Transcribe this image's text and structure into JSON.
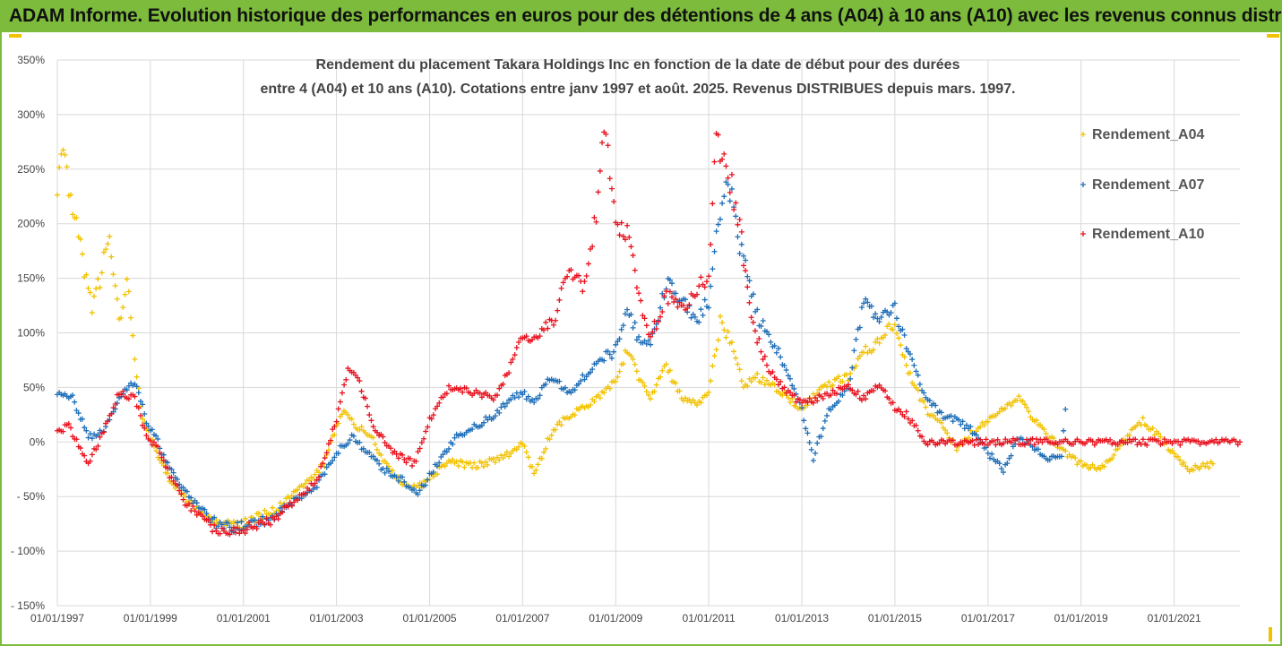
{
  "header": {
    "title": "ADAM Informe. Evolution historique des performances en euros pour des détentions de 4 ans (A04) à 10 ans (A10) avec les revenus connus distribués"
  },
  "colors": {
    "frame": "#7dbb3c",
    "accent": "#f2c200",
    "a04": "#f2c200",
    "a07": "#1f6fb8",
    "a10": "#e8131f",
    "grid": "#d9d9d9",
    "text": "#444444"
  },
  "chart_data": {
    "type": "scatter",
    "title_line1": "Rendement du placement Takara Holdings Inc en fonction de la date de début pour des durées",
    "title_line2": "entre 4 (A04) et 10 ans (A10). Cotations entre janv 1997 et août. 2025. Revenus DISTRIBUES depuis mars. 1997.",
    "xlabel": "",
    "ylabel": "",
    "ylim": [
      -150,
      350
    ],
    "xlim": [
      "1997-01-01",
      "2022-06-01"
    ],
    "y_ticks": [
      350,
      300,
      250,
      200,
      150,
      100,
      50,
      0,
      -50,
      -100,
      -150
    ],
    "y_tick_labels": [
      "350%",
      "300%",
      "250%",
      "200%",
      "150%",
      "100%",
      "50%",
      "0%",
      "- 50%",
      "- 100%",
      "- 150%"
    ],
    "x_ticks": [
      "1997-01-01",
      "1999-01-01",
      "2001-01-01",
      "2003-01-01",
      "2005-01-01",
      "2007-01-01",
      "2009-01-01",
      "2011-01-01",
      "2013-01-01",
      "2015-01-01",
      "2017-01-01",
      "2019-01-01",
      "2021-01-01"
    ],
    "x_tick_labels": [
      "01/01/1997",
      "01/01/1999",
      "01/01/2001",
      "01/01/2003",
      "01/01/2005",
      "01/01/2007",
      "01/01/2009",
      "01/01/2011",
      "01/01/2013",
      "01/01/2015",
      "01/01/2017",
      "01/01/2019",
      "01/01/2021"
    ],
    "grid": true,
    "marker": "+",
    "legend_position": "top-right",
    "series": [
      {
        "name": "Rendement_A04",
        "color": "#f2c200",
        "points": [
          [
            "1997-01-01",
            230
          ],
          [
            "1997-02-01",
            260
          ],
          [
            "1997-04-01",
            240
          ],
          [
            "1997-06-01",
            195
          ],
          [
            "1997-08-01",
            160
          ],
          [
            "1997-10-01",
            120
          ],
          [
            "1997-12-01",
            150
          ],
          [
            "1998-02-01",
            190
          ],
          [
            "1998-03-01",
            175
          ],
          [
            "1998-05-01",
            110
          ],
          [
            "1998-07-01",
            150
          ],
          [
            "1998-09-01",
            75
          ],
          [
            "1998-11-01",
            20
          ],
          [
            "1999-01-01",
            5
          ],
          [
            "1999-04-01",
            -20
          ],
          [
            "1999-07-01",
            -40
          ],
          [
            "1999-10-01",
            -50
          ],
          [
            "2000-01-01",
            -62
          ],
          [
            "2000-04-01",
            -72
          ],
          [
            "2000-08-01",
            -76
          ],
          [
            "2001-01-01",
            -74
          ],
          [
            "2001-06-01",
            -67
          ],
          [
            "2001-10-01",
            -60
          ],
          [
            "2002-04-01",
            -42
          ],
          [
            "2002-10-01",
            -20
          ],
          [
            "2003-01-01",
            15
          ],
          [
            "2003-03-01",
            30
          ],
          [
            "2003-06-01",
            15
          ],
          [
            "2003-10-01",
            5
          ],
          [
            "2004-01-01",
            -15
          ],
          [
            "2004-05-01",
            -35
          ],
          [
            "2004-10-01",
            -42
          ],
          [
            "2005-02-01",
            -30
          ],
          [
            "2005-06-01",
            -18
          ],
          [
            "2005-12-01",
            -22
          ],
          [
            "2006-05-01",
            -18
          ],
          [
            "2006-10-01",
            -10
          ],
          [
            "2007-01-01",
            -2
          ],
          [
            "2007-04-01",
            -30
          ],
          [
            "2007-08-01",
            5
          ],
          [
            "2007-12-01",
            22
          ],
          [
            "2008-04-01",
            30
          ],
          [
            "2008-08-01",
            40
          ],
          [
            "2009-01-01",
            55
          ],
          [
            "2009-04-01",
            85
          ],
          [
            "2009-07-01",
            60
          ],
          [
            "2009-10-01",
            40
          ],
          [
            "2010-02-01",
            70
          ],
          [
            "2010-06-01",
            40
          ],
          [
            "2010-10-01",
            35
          ],
          [
            "2011-01-01",
            45
          ],
          [
            "2011-04-01",
            110
          ],
          [
            "2011-07-01",
            90
          ],
          [
            "2011-10-01",
            50
          ],
          [
            "2012-01-01",
            60
          ],
          [
            "2012-04-01",
            55
          ],
          [
            "2012-08-01",
            45
          ],
          [
            "2013-01-01",
            30
          ],
          [
            "2013-05-01",
            45
          ],
          [
            "2013-09-01",
            55
          ],
          [
            "2014-01-01",
            60
          ],
          [
            "2014-05-01",
            85
          ],
          [
            "2014-09-01",
            90
          ],
          [
            "2015-01-01",
            110
          ],
          [
            "2015-05-01",
            60
          ],
          [
            "2015-09-01",
            30
          ],
          [
            "2016-01-01",
            15
          ],
          [
            "2016-05-01",
            -5
          ],
          [
            "2016-09-01",
            10
          ],
          [
            "2017-01-01",
            20
          ],
          [
            "2017-05-01",
            30
          ],
          [
            "2017-09-01",
            40
          ],
          [
            "2018-01-01",
            20
          ],
          [
            "2018-05-01",
            5
          ],
          [
            "2018-09-01",
            -10
          ],
          [
            "2019-01-01",
            -20
          ],
          [
            "2019-05-01",
            -25
          ],
          [
            "2019-09-01",
            -15
          ],
          [
            "2020-01-01",
            5
          ],
          [
            "2020-05-01",
            20
          ],
          [
            "2020-09-01",
            5
          ],
          [
            "2021-01-01",
            -10
          ],
          [
            "2021-05-01",
            -25
          ],
          [
            "2021-09-01",
            -22
          ],
          [
            "2021-11-01",
            -20
          ]
        ]
      },
      {
        "name": "Rendement_A07",
        "color": "#1f6fb8",
        "points": [
          [
            "1997-01-01",
            45
          ],
          [
            "1997-05-01",
            40
          ],
          [
            "1997-09-01",
            5
          ],
          [
            "1998-01-01",
            10
          ],
          [
            "1998-05-01",
            40
          ],
          [
            "1998-09-01",
            55
          ],
          [
            "1998-12-01",
            20
          ],
          [
            "1999-03-01",
            0
          ],
          [
            "1999-06-01",
            -25
          ],
          [
            "1999-10-01",
            -45
          ],
          [
            "2000-02-01",
            -62
          ],
          [
            "2000-06-01",
            -75
          ],
          [
            "2000-10-01",
            -79
          ],
          [
            "2001-03-01",
            -76
          ],
          [
            "2001-08-01",
            -70
          ],
          [
            "2002-02-01",
            -55
          ],
          [
            "2002-08-01",
            -40
          ],
          [
            "2003-01-01",
            -10
          ],
          [
            "2003-05-01",
            5
          ],
          [
            "2003-09-01",
            -10
          ],
          [
            "2004-01-01",
            -25
          ],
          [
            "2004-06-01",
            -35
          ],
          [
            "2004-10-01",
            -48
          ],
          [
            "2005-03-01",
            -20
          ],
          [
            "2005-08-01",
            5
          ],
          [
            "2006-01-01",
            15
          ],
          [
            "2006-06-01",
            25
          ],
          [
            "2006-10-01",
            40
          ],
          [
            "2007-01-01",
            45
          ],
          [
            "2007-04-01",
            35
          ],
          [
            "2007-08-01",
            60
          ],
          [
            "2008-01-01",
            45
          ],
          [
            "2008-05-01",
            60
          ],
          [
            "2008-08-01",
            75
          ],
          [
            "2008-12-01",
            80
          ],
          [
            "2009-04-01",
            120
          ],
          [
            "2009-07-01",
            95
          ],
          [
            "2009-10-01",
            90
          ],
          [
            "2010-02-01",
            145
          ],
          [
            "2010-06-01",
            130
          ],
          [
            "2010-10-01",
            110
          ],
          [
            "2011-01-01",
            130
          ],
          [
            "2011-04-01",
            215
          ],
          [
            "2011-06-01",
            240
          ],
          [
            "2011-08-01",
            200
          ],
          [
            "2011-11-01",
            150
          ],
          [
            "2012-02-01",
            110
          ],
          [
            "2012-06-01",
            90
          ],
          [
            "2012-10-01",
            60
          ],
          [
            "2013-01-01",
            30
          ],
          [
            "2013-04-01",
            -15
          ],
          [
            "2013-08-01",
            30
          ],
          [
            "2014-01-01",
            50
          ],
          [
            "2014-05-01",
            130
          ],
          [
            "2014-09-01",
            110
          ],
          [
            "2015-01-01",
            120
          ],
          [
            "2015-05-01",
            80
          ],
          [
            "2015-09-01",
            40
          ],
          [
            "2016-01-01",
            25
          ],
          [
            "2016-05-01",
            20
          ],
          [
            "2016-09-01",
            10
          ],
          [
            "2017-01-01",
            -10
          ],
          [
            "2017-05-01",
            -25
          ],
          [
            "2017-09-01",
            5
          ],
          [
            "2018-01-01",
            -5
          ],
          [
            "2018-05-01",
            -15
          ],
          [
            "2018-08-01",
            -15
          ],
          [
            "2018-09-01",
            30
          ]
        ]
      },
      {
        "name": "Rendement_A10",
        "color": "#e8131f",
        "points": [
          [
            "1997-01-01",
            10
          ],
          [
            "1997-04-01",
            15
          ],
          [
            "1997-09-01",
            -20
          ],
          [
            "1998-01-01",
            10
          ],
          [
            "1998-05-01",
            45
          ],
          [
            "1998-09-01",
            40
          ],
          [
            "1998-12-01",
            5
          ],
          [
            "1999-03-01",
            -5
          ],
          [
            "1999-06-01",
            -30
          ],
          [
            "1999-10-01",
            -55
          ],
          [
            "2000-02-01",
            -70
          ],
          [
            "2000-06-01",
            -80
          ],
          [
            "2000-10-01",
            -82
          ],
          [
            "2001-03-01",
            -78
          ],
          [
            "2001-08-01",
            -73
          ],
          [
            "2002-02-01",
            -55
          ],
          [
            "2002-08-01",
            -35
          ],
          [
            "2003-01-01",
            20
          ],
          [
            "2003-04-01",
            65
          ],
          [
            "2003-07-01",
            55
          ],
          [
            "2003-11-01",
            10
          ],
          [
            "2004-04-01",
            -10
          ],
          [
            "2004-09-01",
            -20
          ],
          [
            "2005-01-01",
            20
          ],
          [
            "2005-06-01",
            50
          ],
          [
            "2006-01-01",
            45
          ],
          [
            "2006-06-01",
            40
          ],
          [
            "2006-10-01",
            70
          ],
          [
            "2007-01-01",
            95
          ],
          [
            "2007-05-01",
            100
          ],
          [
            "2007-09-01",
            110
          ],
          [
            "2008-01-01",
            160
          ],
          [
            "2008-05-01",
            140
          ],
          [
            "2008-08-01",
            210
          ],
          [
            "2008-10-01",
            300
          ],
          [
            "2009-01-01",
            190
          ],
          [
            "2009-04-01",
            195
          ],
          [
            "2009-07-01",
            130
          ],
          [
            "2009-10-01",
            95
          ],
          [
            "2010-02-01",
            135
          ],
          [
            "2010-06-01",
            120
          ],
          [
            "2010-10-01",
            140
          ],
          [
            "2011-01-01",
            150
          ],
          [
            "2011-03-01",
            275
          ],
          [
            "2011-06-01",
            250
          ],
          [
            "2011-09-01",
            200
          ],
          [
            "2011-12-01",
            110
          ],
          [
            "2012-04-01",
            70
          ],
          [
            "2012-08-01",
            50
          ],
          [
            "2013-01-01",
            35
          ],
          [
            "2013-05-01",
            40
          ],
          [
            "2013-09-01",
            45
          ],
          [
            "2014-01-01",
            50
          ],
          [
            "2014-05-01",
            40
          ],
          [
            "2014-09-01",
            55
          ],
          [
            "2015-01-01",
            30
          ],
          [
            "2015-04-01",
            25
          ],
          [
            "2015-09-01",
            0
          ],
          [
            "2016-01-01",
            0
          ],
          [
            "2017-01-01",
            0
          ],
          [
            "2018-01-01",
            0
          ],
          [
            "2019-01-01",
            0
          ],
          [
            "2020-01-01",
            0
          ],
          [
            "2021-01-01",
            0
          ],
          [
            "2022-06-01",
            0
          ]
        ]
      }
    ]
  }
}
